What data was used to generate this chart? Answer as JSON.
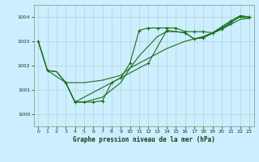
{
  "background_color": "#cceeff",
  "grid_color": "#aacccc",
  "line_color": "#1a6e1a",
  "title": "Graphe pression niveau de la mer (hPa)",
  "xlim": [
    -0.5,
    23.5
  ],
  "ylim": [
    999.5,
    1004.5
  ],
  "yticks": [
    1000,
    1001,
    1002,
    1003,
    1004
  ],
  "xticks": [
    0,
    1,
    2,
    3,
    4,
    5,
    6,
    7,
    8,
    9,
    10,
    11,
    12,
    13,
    14,
    15,
    16,
    17,
    18,
    19,
    20,
    21,
    22,
    23
  ],
  "series1_no_marker": {
    "x": [
      0,
      1,
      2,
      3,
      4,
      5,
      6,
      7,
      8,
      9,
      10,
      11,
      12,
      13,
      14,
      15,
      16,
      17,
      18,
      19,
      20,
      21,
      22,
      23
    ],
    "y": [
      1003.0,
      1001.8,
      1001.75,
      1001.3,
      1001.3,
      1001.3,
      1001.35,
      1001.4,
      1001.5,
      1001.6,
      1001.9,
      1002.1,
      1002.3,
      1002.5,
      1002.7,
      1002.85,
      1003.0,
      1003.1,
      1003.2,
      1003.35,
      1003.5,
      1003.7,
      1003.9,
      1003.95
    ]
  },
  "series2_no_marker": {
    "x": [
      0,
      1,
      2,
      3,
      4,
      5,
      6,
      7,
      8,
      9,
      10,
      11,
      12,
      13,
      14,
      15,
      16,
      17,
      18,
      19,
      20,
      21,
      22,
      23
    ],
    "y": [
      1003.0,
      1001.8,
      1001.75,
      1001.3,
      1000.5,
      1000.5,
      1000.6,
      1000.7,
      1001.0,
      1001.3,
      1001.9,
      1002.4,
      1002.8,
      1003.2,
      1003.4,
      1003.4,
      1003.35,
      1003.1,
      1003.15,
      1003.35,
      1003.55,
      1003.8,
      1004.0,
      1003.95
    ]
  },
  "series3_marker": {
    "x": [
      3,
      4,
      5,
      6,
      7,
      8,
      9,
      10,
      11,
      12,
      13,
      14,
      15,
      16,
      17,
      18,
      19,
      20,
      21,
      22,
      23
    ],
    "y": [
      1001.3,
      1000.5,
      1000.5,
      1000.5,
      1000.55,
      1001.3,
      1001.5,
      1002.1,
      1003.45,
      1003.55,
      1003.55,
      1003.55,
      1003.55,
      1003.4,
      1003.4,
      1003.4,
      1003.35,
      1003.6,
      1003.85,
      1004.05,
      1004.0
    ]
  },
  "series4_marker": {
    "x": [
      0,
      1,
      3,
      4,
      12,
      14,
      16,
      17,
      18,
      20,
      21,
      22,
      23
    ],
    "y": [
      1003.0,
      1001.8,
      1001.3,
      1000.5,
      1002.1,
      1003.45,
      1003.35,
      1003.1,
      1003.15,
      1003.5,
      1003.75,
      1004.05,
      1004.0
    ]
  }
}
